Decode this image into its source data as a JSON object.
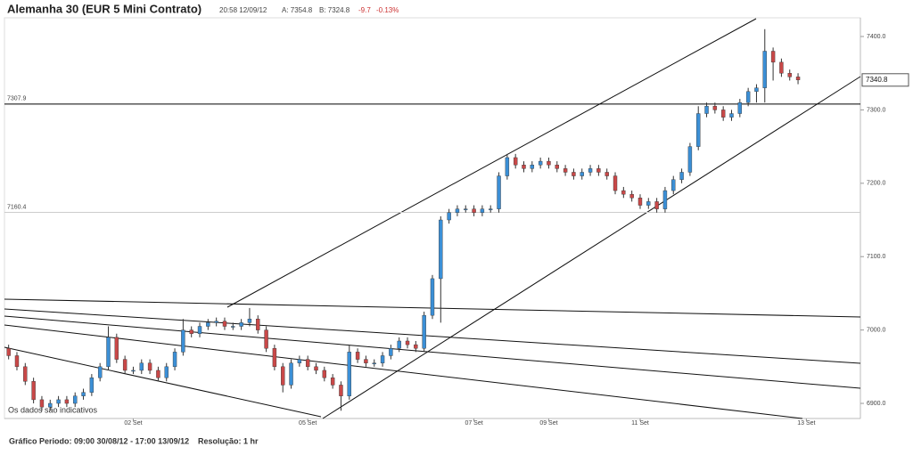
{
  "chart_data": {
    "type": "candlestick",
    "title": "Alemanha 30 (EUR 5 Mini Contrato)",
    "timestamp": "20:58 12/09/12",
    "ask": "A: 7354.8",
    "bid": "B: 7324.8",
    "change": "-9.7",
    "change_pct": "-0.13%",
    "notice": "Os dados são indicativos",
    "period": "Gráfico Periodo: 09:00 30/08/12 - 17:00 13/09/12",
    "resolution": "Resolução: 1 hr",
    "categories": [
      null,
      null,
      null,
      null,
      null,
      null,
      null,
      null,
      null,
      null,
      null,
      null,
      null,
      null,
      null,
      "02 Set",
      null,
      null,
      null,
      null,
      null,
      null,
      null,
      null,
      null,
      null,
      null,
      null,
      null,
      null,
      null,
      null,
      null,
      null,
      null,
      null,
      "05 Set",
      null,
      null,
      null,
      null,
      null,
      null,
      null,
      null,
      null,
      null,
      null,
      null,
      null,
      null,
      null,
      null,
      null,
      null,
      null,
      "07 Set",
      null,
      null,
      null,
      null,
      null,
      null,
      null,
      null,
      "09 Set",
      null,
      null,
      null,
      null,
      null,
      null,
      null,
      null,
      null,
      null,
      "11 Set",
      null,
      null,
      null,
      null,
      null,
      null,
      null,
      null,
      null,
      null,
      null,
      null,
      null,
      null,
      null,
      null,
      null,
      null,
      null,
      "13 Set"
    ],
    "series": [
      {
        "up_color": "#3b8fd6",
        "down_color": "#c94848",
        "open": [
          6975,
          6965,
          6950,
          6930,
          6905,
          6895,
          6900,
          6905,
          6900,
          6910,
          6915,
          6935,
          6950,
          6990,
          6960,
          6945,
          6945,
          6955,
          6945,
          6935,
          6950,
          6970,
          7000,
          6995,
          7005,
          7010,
          7012,
          7005,
          7005,
          7010,
          7015,
          7000,
          6975,
          6950,
          6925,
          6955,
          6960,
          6950,
          6945,
          6935,
          6925,
          6910,
          6970,
          6960,
          6955,
          6955,
          6965,
          6975,
          6985,
          6980,
          6975,
          7020,
          7070,
          7150,
          7160,
          7165,
          7165,
          7160,
          7165,
          7165,
          7210,
          7235,
          7225,
          7220,
          7225,
          7230,
          7225,
          7220,
          7215,
          7210,
          7215,
          7220,
          7215,
          7210,
          7190,
          7185,
          7180,
          7170,
          7175,
          7165,
          7190,
          7205,
          7215,
          7250,
          7295,
          7305,
          7300,
          7290,
          7295,
          7310,
          7325,
          7330,
          7380,
          7365,
          7350,
          7345,
          null
        ],
        "high": [
          6980,
          6970,
          6955,
          6935,
          6910,
          6905,
          6910,
          6910,
          6915,
          6920,
          6940,
          6955,
          7005,
          6995,
          6965,
          6950,
          6960,
          6960,
          6950,
          6955,
          6975,
          7015,
          7005,
          7010,
          7015,
          7017,
          7017,
          7010,
          7015,
          7030,
          7020,
          7005,
          6980,
          6955,
          6960,
          6965,
          6965,
          6955,
          6950,
          6940,
          6930,
          6980,
          6975,
          6965,
          6960,
          6970,
          6980,
          6990,
          6990,
          6985,
          7025,
          7075,
          7155,
          7165,
          7170,
          7170,
          7170,
          7170,
          7170,
          7215,
          7240,
          7240,
          7230,
          7230,
          7235,
          7235,
          7230,
          7225,
          7220,
          7220,
          7225,
          7225,
          7220,
          7215,
          7195,
          7190,
          7185,
          7180,
          7180,
          7195,
          7210,
          7220,
          7255,
          7305,
          7310,
          7310,
          7305,
          7300,
          7315,
          7330,
          7335,
          7410,
          7385,
          7370,
          7355,
          7350,
          null
        ],
        "low": [
          6960,
          6945,
          6925,
          6900,
          6890,
          6890,
          6895,
          6895,
          6895,
          6905,
          6910,
          6930,
          6945,
          6955,
          6940,
          6940,
          6940,
          6940,
          6930,
          6930,
          6945,
          6965,
          6990,
          6990,
          7000,
          7005,
          7000,
          7000,
          7000,
          7005,
          6995,
          6970,
          6945,
          6915,
          6920,
          6950,
          6945,
          6940,
          6930,
          6920,
          6890,
          6905,
          6955,
          6950,
          6950,
          6950,
          6960,
          6970,
          6975,
          6970,
          6970,
          7015,
          7010,
          7145,
          7155,
          7160,
          7155,
          7155,
          7160,
          7160,
          7205,
          7220,
          7215,
          7215,
          7220,
          7220,
          7215,
          7210,
          7205,
          7205,
          7210,
          7210,
          7205,
          7185,
          7180,
          7175,
          7165,
          7165,
          7160,
          7160,
          7185,
          7200,
          7210,
          7245,
          7290,
          7295,
          7285,
          7285,
          7290,
          7305,
          7310,
          7310,
          7340,
          7345,
          7340,
          7335,
          null
        ],
        "close": [
          6965,
          6950,
          6930,
          6905,
          6895,
          6900,
          6905,
          6900,
          6910,
          6915,
          6935,
          6950,
          6990,
          6960,
          6945,
          6945,
          6955,
          6945,
          6935,
          6950,
          6970,
          7000,
          6995,
          7005,
          7010,
          7012,
          7005,
          7005,
          7010,
          7015,
          7000,
          6975,
          6950,
          6925,
          6955,
          6960,
          6950,
          6945,
          6935,
          6925,
          6910,
          6970,
          6960,
          6955,
          6955,
          6965,
          6975,
          6985,
          6980,
          6975,
          7020,
          7070,
          7150,
          7160,
          7165,
          7165,
          7160,
          7165,
          7165,
          7210,
          7235,
          7225,
          7220,
          7225,
          7230,
          7225,
          7220,
          7215,
          7210,
          7215,
          7220,
          7215,
          7210,
          7190,
          7185,
          7180,
          7170,
          7175,
          7165,
          7190,
          7205,
          7215,
          7250,
          7295,
          7305,
          7300,
          7290,
          7295,
          7310,
          7325,
          7330,
          7380,
          7365,
          7350,
          7345,
          7340.8,
          null
        ]
      }
    ],
    "hlines": [
      {
        "value": 7307.9,
        "color": "#000000"
      },
      {
        "value": 7160.4,
        "color": "#cccccc"
      }
    ],
    "ylim": [
      6879.4,
      7443.7
    ],
    "yticks": [
      {
        "value": 6900,
        "label": "6900.0"
      },
      {
        "value": 7000,
        "label": "7000.0"
      },
      {
        "value": 7100,
        "label": "7100.0"
      },
      {
        "value": 7200,
        "label": "7200.0"
      },
      {
        "value": 7300,
        "label": "7300.0"
      },
      {
        "value": 7400,
        "label": "7400.0"
      }
    ]
  }
}
